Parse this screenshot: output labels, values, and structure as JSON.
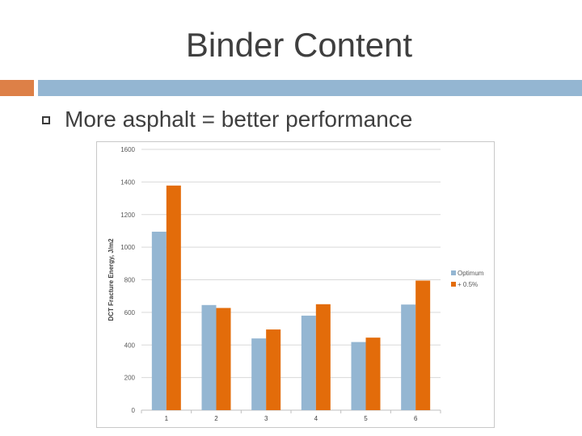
{
  "slide": {
    "title": "Binder Content",
    "bullet": "More asphalt = better performance"
  },
  "colors": {
    "accent_orange": "#dd8047",
    "accent_blue": "#94b6d2",
    "series_optimum": "#94b6d2",
    "series_plus": "#e36c0a"
  },
  "chart_data": {
    "type": "bar",
    "categories": [
      "1",
      "2",
      "3",
      "4",
      "5",
      "6"
    ],
    "series": [
      {
        "name": "Optimum",
        "values": [
          1095,
          645,
          440,
          580,
          418,
          648
        ]
      },
      {
        "name": "+ 0.5%",
        "values": [
          1378,
          627,
          495,
          650,
          445,
          795
        ]
      }
    ],
    "ylabel": "DCT Fracture Energy, J/m2",
    "ylim": [
      0,
      1600
    ],
    "yticks": [
      0,
      200,
      400,
      600,
      800,
      1000,
      1200,
      1400,
      1600
    ],
    "grid": true,
    "legend": "right"
  }
}
